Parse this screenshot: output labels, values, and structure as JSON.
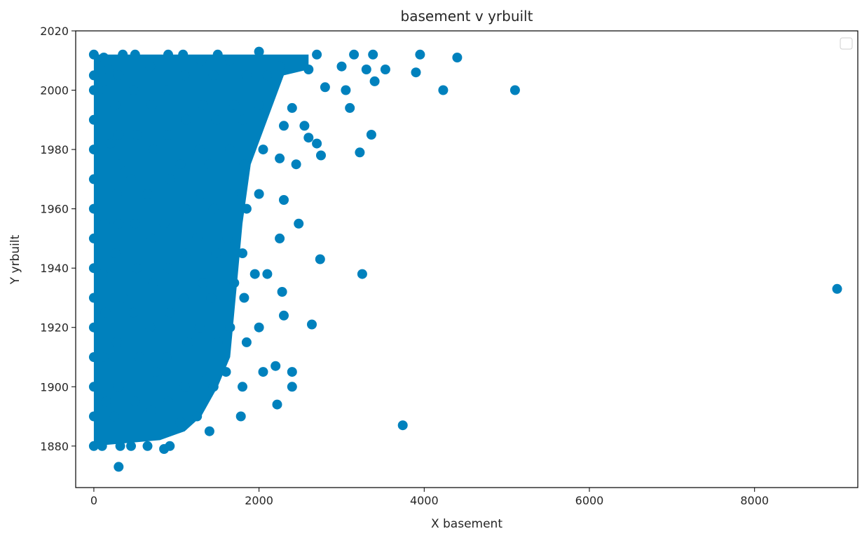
{
  "chart_data": {
    "type": "scatter",
    "title": "basement v yrbuilt",
    "xlabel": "X basement",
    "ylabel": "Y yrbuilt",
    "xlim": [
      -220,
      9250
    ],
    "ylim": [
      1866,
      2020
    ],
    "x_ticks": [
      0,
      2000,
      4000,
      6000,
      8000
    ],
    "y_ticks": [
      1880,
      1900,
      1920,
      1940,
      1960,
      1980,
      2000,
      2020
    ],
    "x_tick_labels": [
      "0",
      "2000",
      "4000",
      "6000",
      "8000"
    ],
    "y_tick_labels": [
      "1880",
      "1900",
      "1920",
      "1940",
      "1960",
      "1980",
      "2000",
      "2020"
    ],
    "grid": false,
    "legend": "upper right, empty",
    "marker_color": "#0081bd",
    "series": [
      {
        "points": [
          {
            "x": 0,
            "y": 1880
          },
          {
            "x": 0,
            "y": 1890
          },
          {
            "x": 0,
            "y": 1900
          },
          {
            "x": 0,
            "y": 1910
          },
          {
            "x": 0,
            "y": 1920
          },
          {
            "x": 0,
            "y": 1930
          },
          {
            "x": 0,
            "y": 1940
          },
          {
            "x": 0,
            "y": 1950
          },
          {
            "x": 0,
            "y": 1960
          },
          {
            "x": 0,
            "y": 1970
          },
          {
            "x": 0,
            "y": 1980
          },
          {
            "x": 0,
            "y": 1990
          },
          {
            "x": 0,
            "y": 2000
          },
          {
            "x": 0,
            "y": 2005
          },
          {
            "x": 0,
            "y": 2012
          },
          {
            "x": 100,
            "y": 1880
          },
          {
            "x": 150,
            "y": 1895
          },
          {
            "x": 120,
            "y": 1910
          },
          {
            "x": 140,
            "y": 1925
          },
          {
            "x": 110,
            "y": 1938
          },
          {
            "x": 130,
            "y": 1955
          },
          {
            "x": 200,
            "y": 1982
          },
          {
            "x": 150,
            "y": 2000
          },
          {
            "x": 120,
            "y": 2011
          },
          {
            "x": 180,
            "y": 2007
          },
          {
            "x": 300,
            "y": 1873
          },
          {
            "x": 320,
            "y": 1880
          },
          {
            "x": 250,
            "y": 1890
          },
          {
            "x": 300,
            "y": 1900
          },
          {
            "x": 280,
            "y": 1915
          },
          {
            "x": 350,
            "y": 1930
          },
          {
            "x": 260,
            "y": 1945
          },
          {
            "x": 300,
            "y": 1955
          },
          {
            "x": 280,
            "y": 1965
          },
          {
            "x": 320,
            "y": 1975
          },
          {
            "x": 300,
            "y": 1985
          },
          {
            "x": 260,
            "y": 1995
          },
          {
            "x": 300,
            "y": 2005
          },
          {
            "x": 350,
            "y": 2012
          },
          {
            "x": 450,
            "y": 1880
          },
          {
            "x": 500,
            "y": 1895
          },
          {
            "x": 550,
            "y": 1910
          },
          {
            "x": 480,
            "y": 1925
          },
          {
            "x": 520,
            "y": 1940
          },
          {
            "x": 500,
            "y": 1955
          },
          {
            "x": 450,
            "y": 1970
          },
          {
            "x": 520,
            "y": 1985
          },
          {
            "x": 480,
            "y": 2000
          },
          {
            "x": 500,
            "y": 2012
          },
          {
            "x": 650,
            "y": 1880
          },
          {
            "x": 700,
            "y": 1892
          },
          {
            "x": 750,
            "y": 1905
          },
          {
            "x": 680,
            "y": 1920
          },
          {
            "x": 720,
            "y": 1935
          },
          {
            "x": 700,
            "y": 1950
          },
          {
            "x": 650,
            "y": 1965
          },
          {
            "x": 720,
            "y": 1980
          },
          {
            "x": 700,
            "y": 1995
          },
          {
            "x": 680,
            "y": 2008
          },
          {
            "x": 850,
            "y": 1879
          },
          {
            "x": 920,
            "y": 1880
          },
          {
            "x": 900,
            "y": 1895
          },
          {
            "x": 880,
            "y": 1910
          },
          {
            "x": 920,
            "y": 1925
          },
          {
            "x": 900,
            "y": 1940
          },
          {
            "x": 850,
            "y": 1955
          },
          {
            "x": 920,
            "y": 1970
          },
          {
            "x": 900,
            "y": 1985
          },
          {
            "x": 880,
            "y": 2000
          },
          {
            "x": 900,
            "y": 2012
          },
          {
            "x": 1050,
            "y": 1888
          },
          {
            "x": 1100,
            "y": 1900
          },
          {
            "x": 1150,
            "y": 1915
          },
          {
            "x": 1080,
            "y": 1930
          },
          {
            "x": 1120,
            "y": 1945
          },
          {
            "x": 1100,
            "y": 1960
          },
          {
            "x": 1050,
            "y": 1975
          },
          {
            "x": 1120,
            "y": 1990
          },
          {
            "x": 1100,
            "y": 2005
          },
          {
            "x": 1080,
            "y": 2012
          },
          {
            "x": 1250,
            "y": 1890
          },
          {
            "x": 1300,
            "y": 1905
          },
          {
            "x": 1280,
            "y": 1920
          },
          {
            "x": 1320,
            "y": 1935
          },
          {
            "x": 1250,
            "y": 1950
          },
          {
            "x": 1300,
            "y": 1965
          },
          {
            "x": 1280,
            "y": 1980
          },
          {
            "x": 1320,
            "y": 1995
          },
          {
            "x": 1300,
            "y": 2010
          },
          {
            "x": 1400,
            "y": 1885
          },
          {
            "x": 1450,
            "y": 1900
          },
          {
            "x": 1500,
            "y": 1915
          },
          {
            "x": 1420,
            "y": 1930
          },
          {
            "x": 1480,
            "y": 1945
          },
          {
            "x": 1450,
            "y": 1960
          },
          {
            "x": 1400,
            "y": 1975
          },
          {
            "x": 1480,
            "y": 1990
          },
          {
            "x": 1450,
            "y": 2005
          },
          {
            "x": 1500,
            "y": 2012
          },
          {
            "x": 1600,
            "y": 1905
          },
          {
            "x": 1650,
            "y": 1920
          },
          {
            "x": 1700,
            "y": 1935
          },
          {
            "x": 1620,
            "y": 1950
          },
          {
            "x": 1680,
            "y": 1965
          },
          {
            "x": 1650,
            "y": 1980
          },
          {
            "x": 1700,
            "y": 1995
          },
          {
            "x": 1650,
            "y": 2010
          },
          {
            "x": 1780,
            "y": 1890
          },
          {
            "x": 1800,
            "y": 1900
          },
          {
            "x": 1850,
            "y": 1915
          },
          {
            "x": 1820,
            "y": 1930
          },
          {
            "x": 1800,
            "y": 1945
          },
          {
            "x": 1850,
            "y": 1960
          },
          {
            "x": 1820,
            "y": 1975
          },
          {
            "x": 1800,
            "y": 1990
          },
          {
            "x": 1850,
            "y": 2005
          },
          {
            "x": 1950,
            "y": 1938
          },
          {
            "x": 2000,
            "y": 1920
          },
          {
            "x": 2050,
            "y": 1905
          },
          {
            "x": 2100,
            "y": 1938
          },
          {
            "x": 2000,
            "y": 1965
          },
          {
            "x": 2050,
            "y": 1980
          },
          {
            "x": 2000,
            "y": 1995
          },
          {
            "x": 2000,
            "y": 2013
          },
          {
            "x": 2100,
            "y": 2005
          },
          {
            "x": 2200,
            "y": 1907
          },
          {
            "x": 2250,
            "y": 1950
          },
          {
            "x": 2280,
            "y": 1932
          },
          {
            "x": 2300,
            "y": 1924
          },
          {
            "x": 2220,
            "y": 1894
          },
          {
            "x": 2300,
            "y": 1963
          },
          {
            "x": 2250,
            "y": 1977
          },
          {
            "x": 2300,
            "y": 1988
          },
          {
            "x": 2250,
            "y": 2008
          },
          {
            "x": 2400,
            "y": 1900
          },
          {
            "x": 2400,
            "y": 1905
          },
          {
            "x": 2480,
            "y": 1955
          },
          {
            "x": 2450,
            "y": 1975
          },
          {
            "x": 2400,
            "y": 1994
          },
          {
            "x": 2550,
            "y": 1988
          },
          {
            "x": 2600,
            "y": 1984
          },
          {
            "x": 2640,
            "y": 1921
          },
          {
            "x": 2700,
            "y": 1982
          },
          {
            "x": 2740,
            "y": 1943
          },
          {
            "x": 2750,
            "y": 1978
          },
          {
            "x": 2600,
            "y": 2007
          },
          {
            "x": 2700,
            "y": 2012
          },
          {
            "x": 2800,
            "y": 2001
          },
          {
            "x": 3000,
            "y": 2008
          },
          {
            "x": 3050,
            "y": 2000
          },
          {
            "x": 3100,
            "y": 1994
          },
          {
            "x": 3150,
            "y": 2012
          },
          {
            "x": 3220,
            "y": 1979
          },
          {
            "x": 3250,
            "y": 1938
          },
          {
            "x": 3300,
            "y": 2007
          },
          {
            "x": 3360,
            "y": 1985
          },
          {
            "x": 3380,
            "y": 2012
          },
          {
            "x": 3400,
            "y": 2003
          },
          {
            "x": 3530,
            "y": 2007
          },
          {
            "x": 3740,
            "y": 1887
          },
          {
            "x": 3900,
            "y": 2006
          },
          {
            "x": 3950,
            "y": 2012
          },
          {
            "x": 4230,
            "y": 2000
          },
          {
            "x": 4400,
            "y": 2011
          },
          {
            "x": 5100,
            "y": 2000
          },
          {
            "x": 9000,
            "y": 1933
          }
        ]
      }
    ]
  }
}
